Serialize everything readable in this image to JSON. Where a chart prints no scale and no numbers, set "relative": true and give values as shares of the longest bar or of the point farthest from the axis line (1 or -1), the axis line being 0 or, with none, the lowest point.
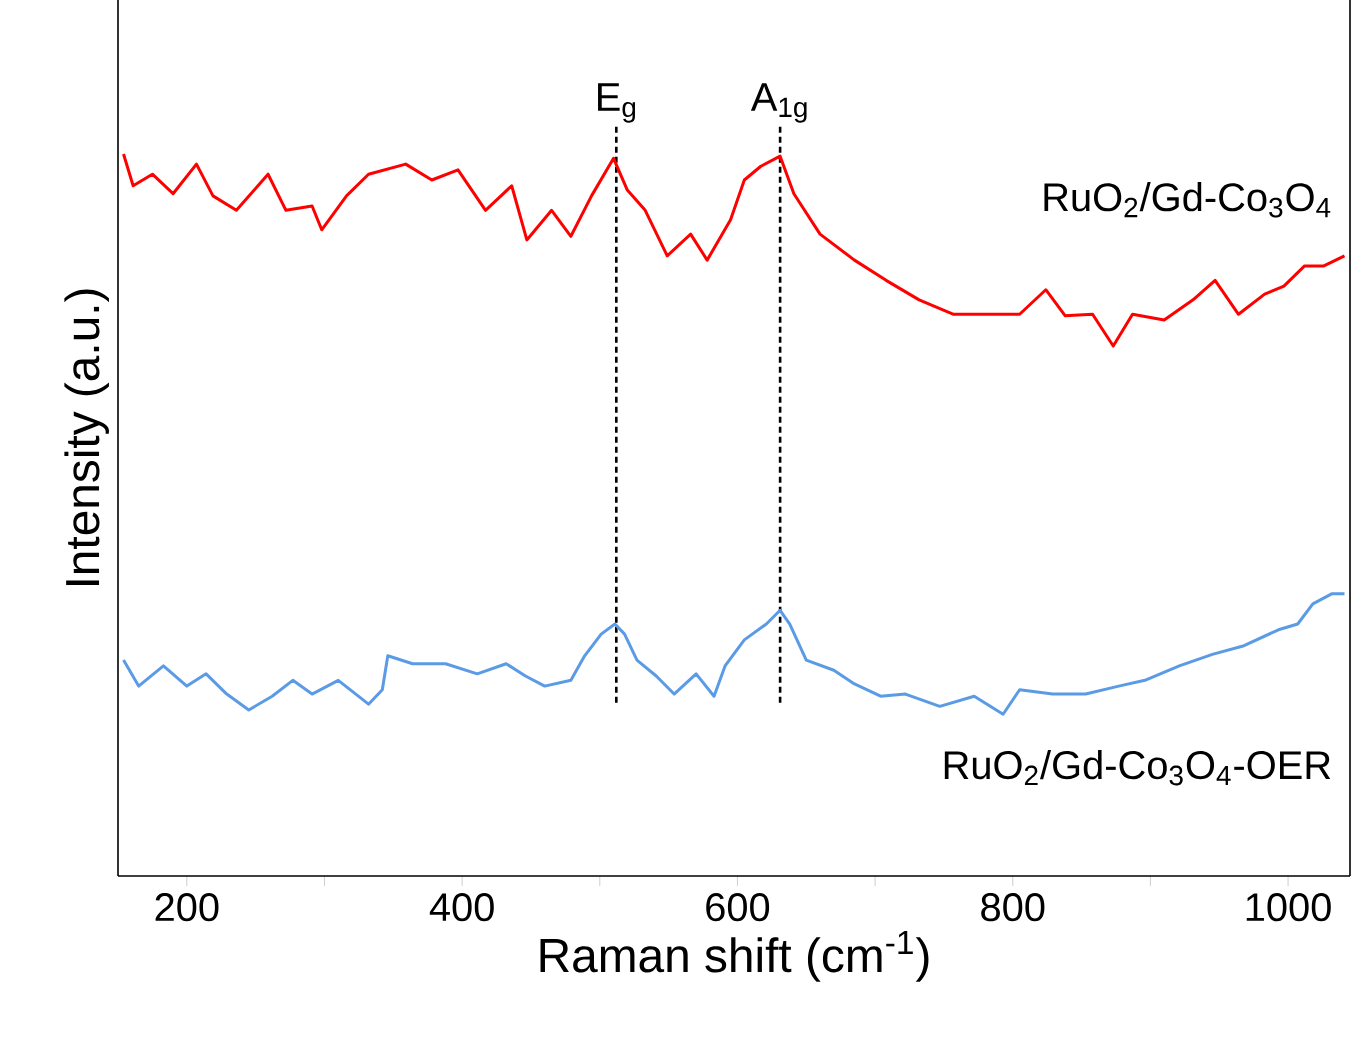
{
  "chart_data": {
    "type": "line",
    "relative": true,
    "xlabel": "Raman shift (cm$^{-1}$)",
    "ylabel": "Intensity (a.u.)",
    "xlim": [
      150,
      1045
    ],
    "xticks": [
      200,
      {
        "value": 300,
        "label": null
      },
      400,
      {
        "value": 500,
        "label": null
      },
      600,
      {
        "value": 700,
        "label": null
      },
      800,
      {
        "value": 900,
        "label": null
      },
      1000
    ],
    "line_style": "solid",
    "marker": "none",
    "grid": false,
    "ref_lines": [
      {
        "axis": "x",
        "value": 512,
        "label": "E$_{g}$",
        "line_style": "dashed",
        "color": "#000000"
      },
      {
        "axis": "x",
        "value": 631,
        "label": "A$_{1g}$",
        "line_style": "dashed",
        "color": "#000000"
      }
    ],
    "series": [
      {
        "name": "RuO$_{2}$/Gd-Co$_{3}$O$_{4}$",
        "color": "#ff0000",
        "x": [
          154,
          161,
          175,
          190,
          207,
          219,
          236,
          259,
          272,
          291,
          298,
          316,
          332,
          359,
          378,
          397,
          417,
          436,
          447,
          465,
          479,
          494,
          510,
          520,
          533,
          549,
          566,
          578,
          595,
          605,
          617,
          631,
          641,
          660,
          685,
          708,
          732,
          757,
          780,
          805,
          824,
          838,
          858,
          873,
          887,
          910,
          931,
          947,
          964,
          983,
          997,
          1012,
          1026,
          1041
        ],
        "values": [
          1.0,
          0.956,
          0.972,
          0.945,
          0.986,
          0.942,
          0.922,
          0.972,
          0.922,
          0.928,
          0.895,
          0.942,
          0.972,
          0.986,
          0.964,
          0.978,
          0.922,
          0.956,
          0.881,
          0.922,
          0.886,
          0.942,
          0.994,
          0.95,
          0.922,
          0.859,
          0.889,
          0.853,
          0.909,
          0.964,
          0.983,
          0.997,
          0.945,
          0.889,
          0.853,
          0.825,
          0.798,
          0.778,
          0.778,
          0.778,
          0.812,
          0.776,
          0.778,
          0.734,
          0.778,
          0.77,
          0.798,
          0.825,
          0.778,
          0.806,
          0.817,
          0.845,
          0.845,
          0.859
        ]
      },
      {
        "name": "RuO$_{2}$/Gd-Co$_{3}$O$_{4}$-OER",
        "color": "#5b9be6",
        "x": [
          154,
          165,
          183,
          200,
          214,
          229,
          245,
          262,
          277,
          291,
          310,
          332,
          342,
          346,
          364,
          388,
          411,
          432,
          446,
          460,
          479,
          489,
          501,
          511,
          518,
          527,
          541,
          554,
          570,
          583,
          591,
          605,
          621,
          631,
          638,
          650,
          670,
          685,
          704,
          722,
          747,
          772,
          793,
          805,
          829,
          853,
          877,
          896,
          921,
          945,
          968,
          993,
          1007,
          1018,
          1032,
          1041
        ],
        "values": [
          0.299,
          0.263,
          0.291,
          0.263,
          0.28,
          0.252,
          0.23,
          0.249,
          0.271,
          0.252,
          0.271,
          0.238,
          0.258,
          0.305,
          0.294,
          0.294,
          0.28,
          0.294,
          0.277,
          0.263,
          0.271,
          0.305,
          0.335,
          0.349,
          0.335,
          0.299,
          0.277,
          0.252,
          0.28,
          0.249,
          0.291,
          0.327,
          0.349,
          0.368,
          0.349,
          0.299,
          0.285,
          0.266,
          0.249,
          0.252,
          0.235,
          0.249,
          0.224,
          0.258,
          0.252,
          0.252,
          0.263,
          0.271,
          0.291,
          0.307,
          0.319,
          0.341,
          0.349,
          0.377,
          0.391,
          0.391
        ]
      }
    ]
  }
}
